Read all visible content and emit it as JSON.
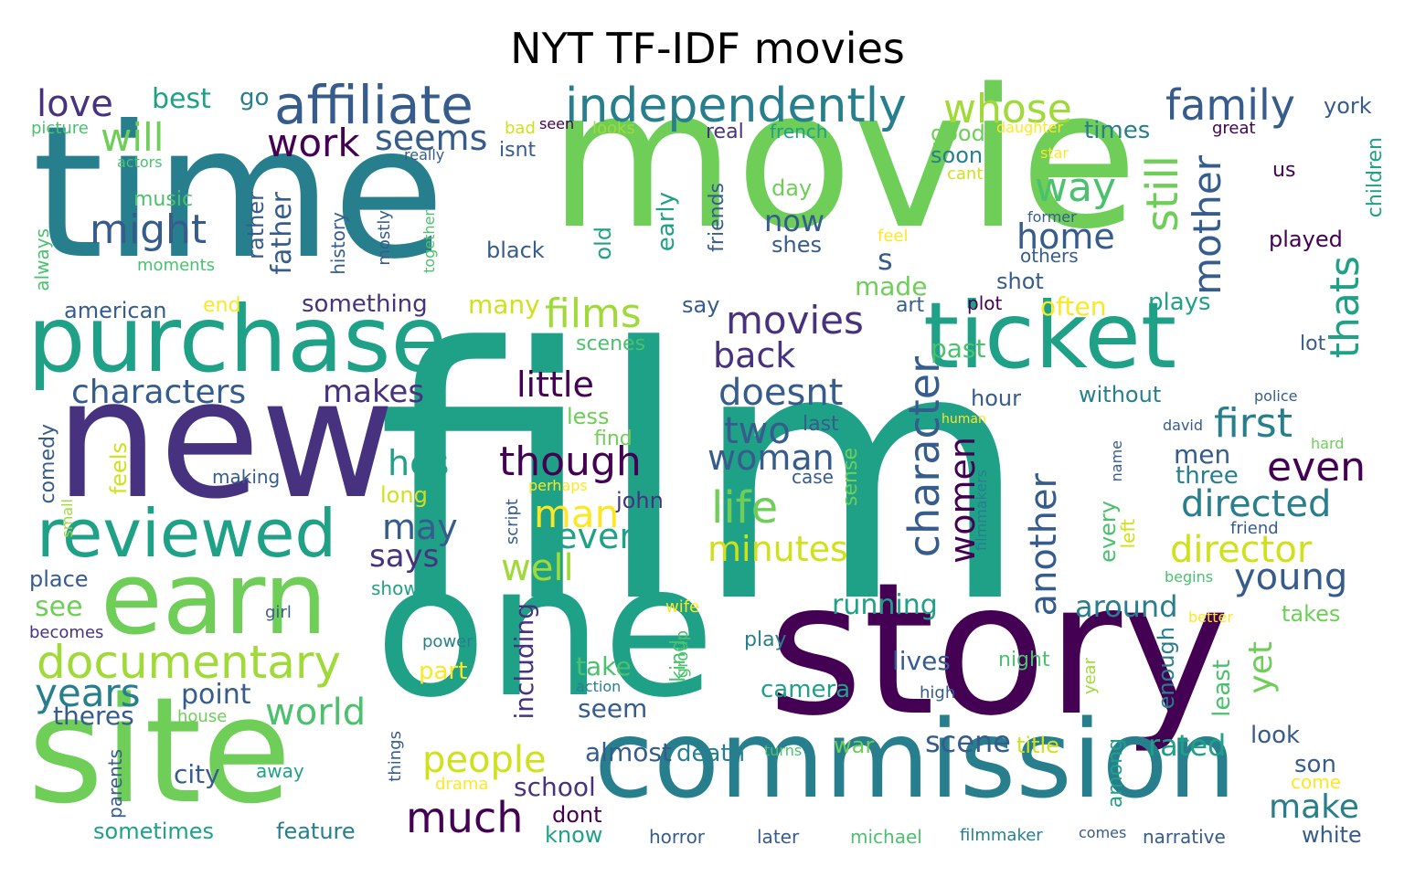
{
  "title": "NYT TF-IDF movies",
  "colors": [
    "#440154",
    "#46327e",
    "#365c8d",
    "#277f8e",
    "#1fa187",
    "#4ac16d",
    "#6ece58",
    "#a0da39",
    "#d0e11c",
    "#fde725"
  ],
  "words": [
    "film",
    "movie",
    "time",
    "new",
    "one",
    "story",
    "site",
    "commission",
    "purchase",
    "ticket",
    "earn",
    "reviewed",
    "affiliate",
    "independently",
    "documentary",
    "whose",
    "family",
    "will",
    "love",
    "might",
    "work",
    "seems",
    "films",
    "movies",
    "characters",
    "makes",
    "back",
    "little",
    "doesnt",
    "first",
    "two",
    "though",
    "hes",
    "life",
    "woman",
    "even",
    "directed",
    "man",
    "minutes",
    "director",
    "young",
    "well",
    "never",
    "may",
    "says",
    "years",
    "world",
    "people",
    "much",
    "make",
    "home",
    "way",
    "still",
    "mother",
    "thats",
    "character",
    "another",
    "women",
    "running",
    "around",
    "yet",
    "including",
    "scene",
    "rated",
    "camera",
    "lives",
    "point",
    "theres",
    "city",
    "school",
    "almost",
    "death",
    "seem",
    "take",
    "part",
    "see",
    "american",
    "something",
    "many",
    "made",
    "s",
    "shot",
    "often",
    "plays",
    "past",
    "hour",
    "without",
    "men",
    "three",
    "john",
    "best",
    "go",
    "isnt",
    "real",
    "french",
    "good",
    "soon",
    "times",
    "york",
    "great",
    "picture",
    "bad",
    "seen",
    "looks",
    "daughter",
    "star",
    "cant",
    "actors",
    "really",
    "music",
    "rather",
    "father",
    "day",
    "now",
    "shes",
    "us",
    "children",
    "played",
    "former",
    "others",
    "feel",
    "friends",
    "early",
    "old",
    "black",
    "moments",
    "history",
    "mostly",
    "together",
    "always",
    "end",
    "say",
    "art",
    "plot",
    "scenes",
    "lot",
    "police",
    "human",
    "david",
    "hard",
    "last",
    "less",
    "find",
    "comedy",
    "feels",
    "making",
    "case",
    "sense",
    "long",
    "perhaps",
    "small",
    "script",
    "every",
    "left",
    "name",
    "filmmakers",
    "friend",
    "begins",
    "place",
    "shows",
    "girl",
    "wife",
    "better",
    "takes",
    "becomes",
    "power",
    "play",
    "group",
    "kind",
    "night",
    "enough",
    "least",
    "action",
    "high",
    "year",
    "house",
    "title",
    "among",
    "look",
    "son",
    "come",
    "war",
    "turns",
    "away",
    "parents",
    "things",
    "drama",
    "dont",
    "know",
    "sometimes",
    "feature",
    "horror",
    "later",
    "michael",
    "filmmaker",
    "comes",
    "narrative",
    "white"
  ]
}
